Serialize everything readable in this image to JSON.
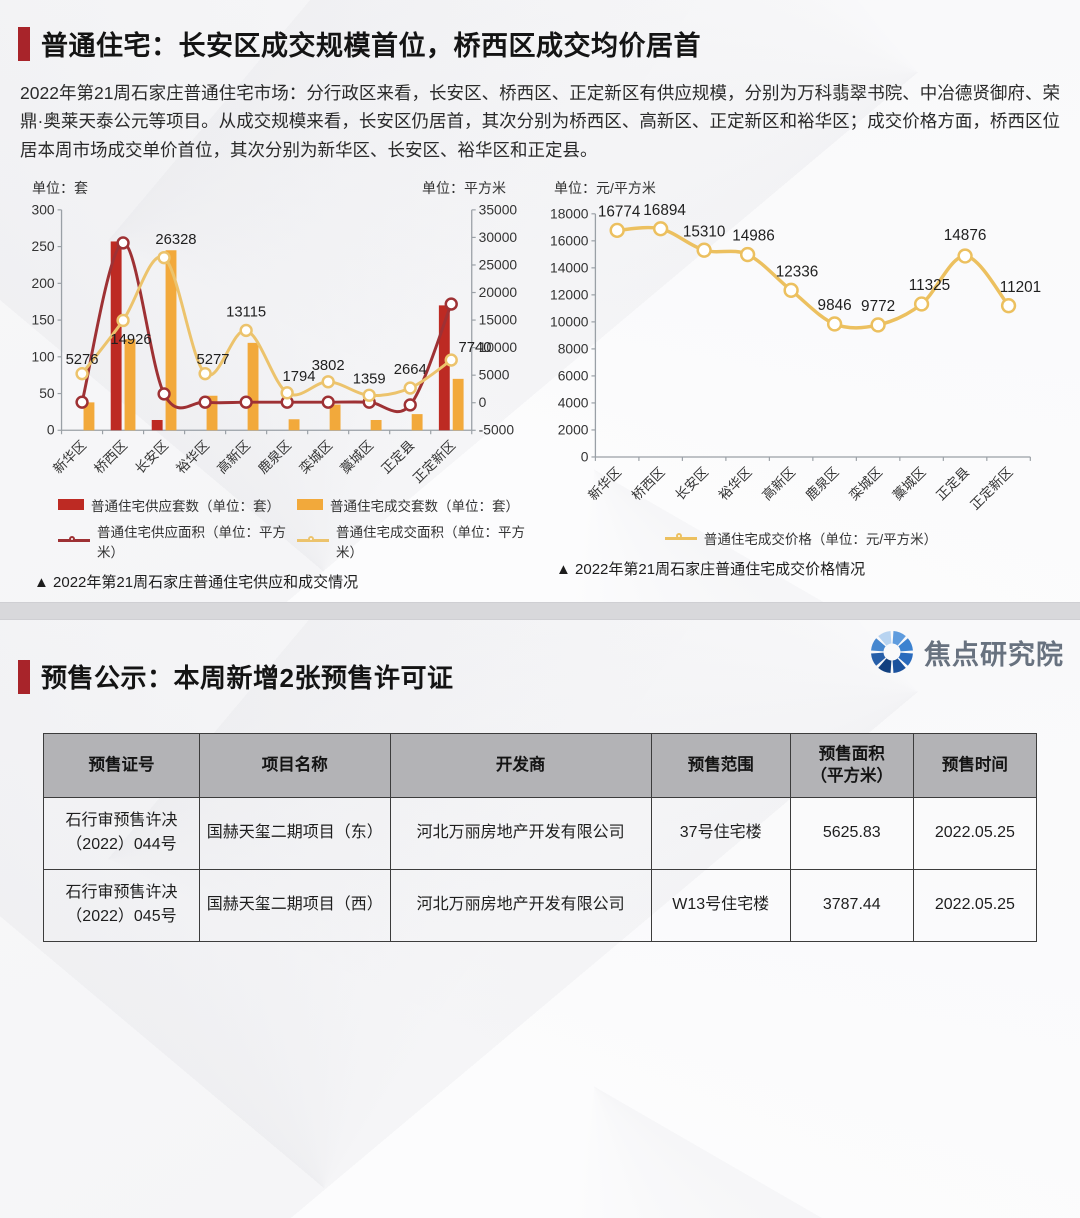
{
  "section1": {
    "accent_color": "#a8242a",
    "title": "普通住宅：长安区成交规模首位，桥西区成交均价居首",
    "paragraph": "2022年第21周石家庄普通住宅市场：分行政区来看，长安区、桥西区、正定新区有供应规模，分别为万科翡翠书院、中冶德贤御府、荣鼎·奥莱天泰公元等项目。从成交规模来看，长安区仍居首，其次分别为桥西区、高新区、正定新区和裕华区；成交价格方面，桥西区位居本周市场成交单价首位，其次分别为新华区、长安区、裕华区和正定县。"
  },
  "chart_data": [
    {
      "type": "bar",
      "subtype": "combo dual-axis bar+line",
      "title": "▲ 2022年第21周石家庄普通住宅供应和成交情况",
      "categories": [
        "新华区",
        "桥西区",
        "长安区",
        "裕华区",
        "高新区",
        "鹿泉区",
        "栾城区",
        "藁城区",
        "正定县",
        "正定新区"
      ],
      "left_axis": {
        "unit": "单位：套",
        "min": 0,
        "max": 300,
        "step": 50
      },
      "right_axis": {
        "unit": "单位：平方米",
        "min": -5000,
        "max": 35000,
        "step": 5000
      },
      "grid": false,
      "legend_position": "bottom",
      "series": [
        {
          "name": "普通住宅供应套数（单位：套）",
          "kind": "bar",
          "axis": "left",
          "color": "#bd2a23",
          "values": [
            0,
            257,
            14,
            0,
            0,
            0,
            0,
            0,
            0,
            170
          ]
        },
        {
          "name": "普通住宅成交套数（单位：套）",
          "kind": "bar",
          "axis": "left",
          "color": "#f2a93b",
          "values": [
            38,
            124,
            245,
            47,
            119,
            15,
            35,
            14,
            22,
            70
          ]
        },
        {
          "name": "普通住宅供应面积（单位：平方米）",
          "kind": "line",
          "axis": "right",
          "color": "#9e3134",
          "labeled": false,
          "values": [
            100,
            29000,
            1600,
            100,
            100,
            100,
            100,
            100,
            -400,
            17900
          ]
        },
        {
          "name": "普通住宅成交面积（单位：平方米）",
          "kind": "line",
          "axis": "right",
          "color": "#ecc36c",
          "labeled": true,
          "values": [
            5276,
            14926,
            26328,
            5277,
            13115,
            1794,
            3802,
            1359,
            2664,
            7740
          ]
        }
      ]
    },
    {
      "type": "line",
      "title": "▲ 2022年第21周石家庄普通住宅成交价格情况",
      "categories": [
        "新华区",
        "桥西区",
        "长安区",
        "裕华区",
        "高新区",
        "鹿泉区",
        "栾城区",
        "藁城区",
        "正定县",
        "正定新区"
      ],
      "y_axis": {
        "unit": "单位：元/平方米",
        "min": 0,
        "max": 18000,
        "step": 2000
      },
      "grid": false,
      "legend_position": "bottom",
      "series": [
        {
          "name": "普通住宅成交价格（单位：元/平方米）",
          "kind": "line",
          "color": "#ecc05f",
          "labeled": true,
          "values": [
            16774,
            16894,
            15310,
            14986,
            12336,
            9846,
            9772,
            11325,
            14876,
            11201
          ]
        }
      ]
    }
  ],
  "section2": {
    "accent_color": "#a8242a",
    "title": "预售公示：本周新增2张预售许可证",
    "logo": {
      "text": "焦点研究院",
      "icon": "aperture-icon",
      "segment_colors": [
        "#5f9cde",
        "#3c82d0",
        "#2a6bbd",
        "#1b529d",
        "#12407f",
        "#275fa9",
        "#4687cf",
        "#b8d4f1"
      ]
    },
    "table": {
      "header_bg": "#b3b3b6",
      "headers": [
        "预售证号",
        "项目名称",
        "开发商",
        "预售范围",
        "预售面积\n（平方米）",
        "预售时间"
      ],
      "rows": [
        [
          "石行审预售许决\n（2022）044号",
          "国赫天玺二期项目（东）",
          "河北万丽房地产开发有限公司",
          "37号住宅楼",
          "5625.83",
          "2022.05.25"
        ],
        [
          "石行审预售许决\n（2022）045号",
          "国赫天玺二期项目（西）",
          "河北万丽房地产开发有限公司",
          "W13号住宅楼",
          "3787.44",
          "2022.05.25"
        ]
      ]
    }
  }
}
